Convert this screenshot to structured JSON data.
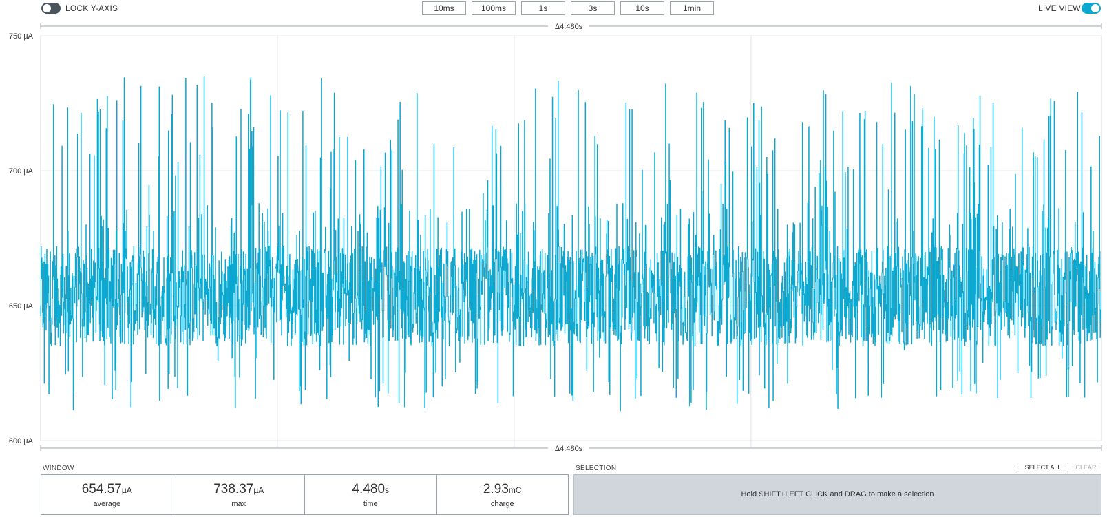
{
  "toolbar": {
    "lock_y_axis_label": "LOCK Y-AXIS",
    "lock_y_axis_on": false,
    "live_view_label": "LIVE VIEW",
    "live_view_on": true,
    "ranges": [
      "10ms",
      "100ms",
      "1s",
      "3s",
      "10s",
      "1min"
    ]
  },
  "chart_data": {
    "type": "line",
    "ylim": [
      600,
      750
    ],
    "yticks": [
      "750 µA",
      "700 µA",
      "650 µA",
      "600 µA"
    ],
    "ytick_values": [
      750,
      700,
      650,
      600
    ],
    "xrange_s": 4.48,
    "xlabel": "",
    "ylabel": "",
    "delta_top": "Δ4.480s",
    "delta_bottom": "Δ4.480s",
    "grid": true,
    "series_color": "#0aa8d0",
    "baseline_low": 635,
    "baseline_high": 672,
    "spike_peaks": [
      730,
      722,
      735,
      720,
      730,
      735,
      725,
      725,
      735,
      730,
      725,
      720,
      730,
      738,
      730,
      735,
      730,
      720,
      735,
      738,
      730,
      735,
      730,
      735,
      730
    ],
    "dip_lows": [
      620,
      615,
      611,
      618,
      613,
      611,
      616,
      612,
      611,
      615,
      611
    ]
  },
  "window": {
    "label": "WINDOW",
    "stats": [
      {
        "value": "654.57",
        "unit": "µA",
        "caption": "average"
      },
      {
        "value": "738.37",
        "unit": "µA",
        "caption": "max"
      },
      {
        "value": "4.480",
        "unit": "s",
        "caption": "time"
      },
      {
        "value": "2.93",
        "unit": "mC",
        "caption": "charge"
      }
    ]
  },
  "selection": {
    "label": "SELECTION",
    "hint": "Hold SHIFT+LEFT CLICK and DRAG to make a selection",
    "select_all_label": "SELECT ALL",
    "clear_label": "CLEAR"
  }
}
